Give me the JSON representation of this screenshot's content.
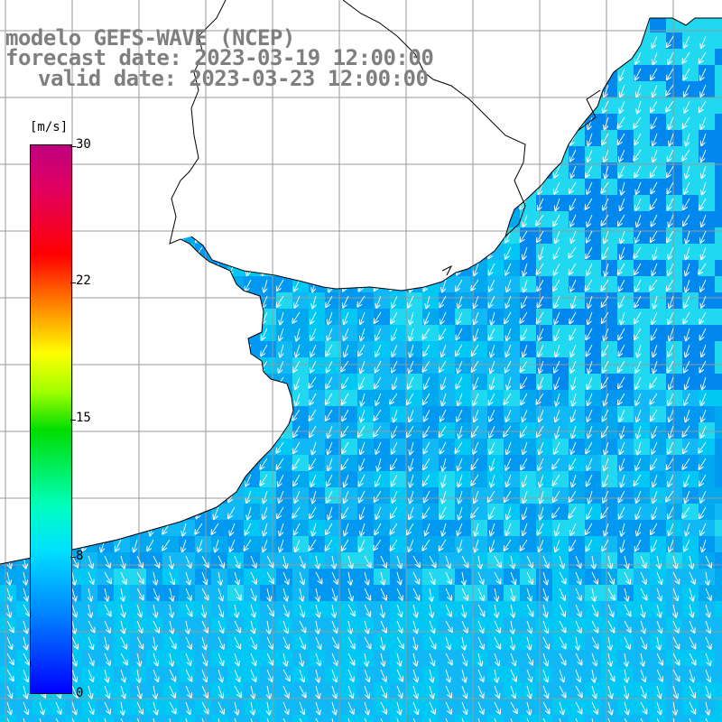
{
  "title": {
    "line1": "modelo GEFS-WAVE (NCEP)",
    "line2": "forecast date: 2023-03-19 12:00:00",
    "line3": "valid date: 2023-03-23 12:00:00"
  },
  "colorbar": {
    "unit": "[m/s]",
    "ticks": [
      "30",
      "22",
      "15",
      "8",
      "0"
    ],
    "tick_values": [
      30,
      22,
      15,
      8,
      0
    ],
    "min": 0,
    "max": 30
  },
  "map": {
    "field": "wind speed",
    "typical_speed": 7,
    "coast_color": "#000000",
    "land_color": "#ffffff",
    "grid_color": "#9a9a9a"
  }
}
